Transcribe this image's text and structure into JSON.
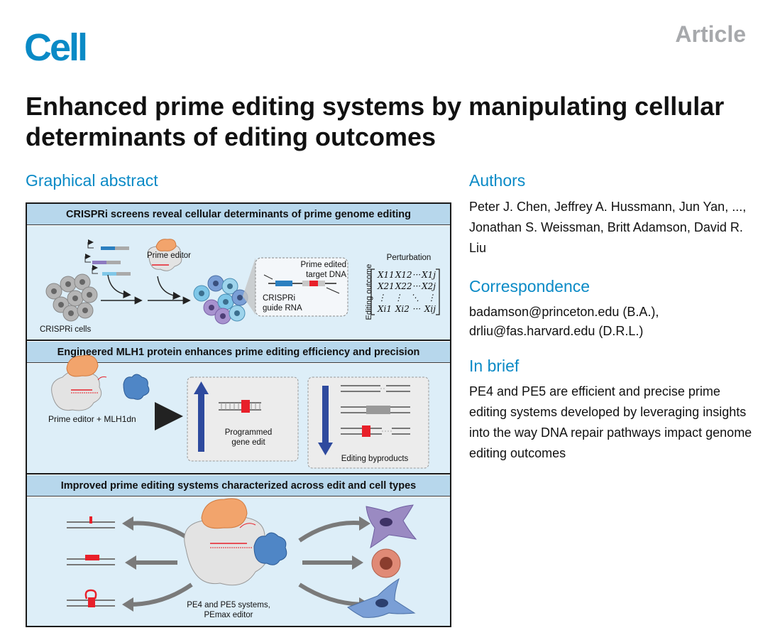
{
  "header": {
    "journal_logo": "Cell",
    "article_type": "Article"
  },
  "title": "Enhanced prime editing systems by manipulating cellular determinants of editing outcomes",
  "sections": {
    "graphical_abstract": "Graphical abstract",
    "authors": "Authors",
    "correspondence": "Correspondence",
    "in_brief": "In brief"
  },
  "authors_text": "Peter J. Chen, Jeffrey A. Hussmann, Jun Yan, ..., Jonathan S. Weissman, Britt Adamson, David R. Liu",
  "correspondence_lines": [
    "badamson@princeton.edu (B.A.),",
    "drliu@fas.harvard.edu (D.R.L.)"
  ],
  "in_brief_text": "PE4 and PE5 are efficient and precise prime editing systems developed by leveraging insights into the way DNA repair pathways impact genome editing outcomes",
  "abstract": {
    "panel1": {
      "heading": "CRISPRi screens reveal cellular determinants of prime genome editing",
      "crispri_cells": "CRISPRi cells",
      "prime_editor": "Prime editor",
      "prime_edited_target": "Prime edited\ntarget DNA",
      "crispri_guide": "CRISPRi\nguide RNA",
      "perturbation": "Perturbation",
      "editing_outcome": "Editing outcome",
      "matrix_rows": [
        [
          "X11",
          "X12",
          "···",
          "X1j"
        ],
        [
          "X21",
          "X22",
          "···",
          "X2j"
        ],
        [
          "⋮",
          "⋮",
          "⋱",
          "⋮"
        ],
        [
          "Xi1",
          "Xi2",
          "···",
          "Xij"
        ]
      ]
    },
    "panel2": {
      "heading": "Engineered MLH1 protein enhances prime editing efficiency and precision",
      "editor_plus_mlh1": "Prime editor + MLH1dn",
      "programmed_edit": "Programmed\ngene edit",
      "byproducts": "Editing byproducts"
    },
    "panel3": {
      "heading": "Improved prime editing systems characterized across edit and cell types",
      "systems": "PE4 and PE5 systems,\nPEmax editor"
    },
    "colors": {
      "accent_blue": "#0a8ac6",
      "header_band": "#b7d7ec",
      "panel_bg": "#ddeef8",
      "edit_red": "#e8202a",
      "arrow_navy": "#2e4a9e"
    }
  }
}
